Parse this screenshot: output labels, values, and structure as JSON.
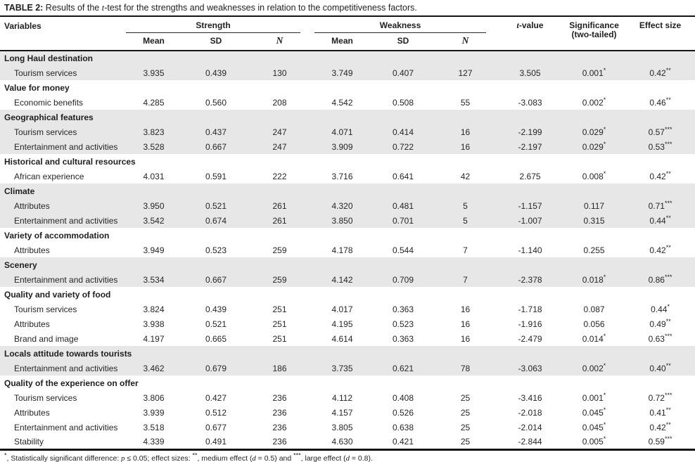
{
  "title": {
    "label": "TABLE 2:",
    "pre": " Results of the ",
    "italic": "t",
    "post": "-test for the strengths and weaknesses in relation to the competitiveness factors."
  },
  "columns": {
    "variables": "Variables",
    "strength": "Strength",
    "weakness": "Weakness",
    "mean": "Mean",
    "sd": "SD",
    "n": "N",
    "tvalue_italic": "t",
    "tvalue_post": "-value",
    "significance_line1": "Significance",
    "significance_line2": "(two-tailed)",
    "effect_size": "Effect size"
  },
  "sections": [
    {
      "name": "Long Haul destination",
      "shaded": true,
      "rows": [
        {
          "label": "Tourism services",
          "values": [
            "3.935",
            "0.439",
            "130",
            "3.749",
            "0.407",
            "127",
            "3.505",
            "0.001*",
            "0.42**"
          ]
        }
      ]
    },
    {
      "name": "Value for money",
      "shaded": false,
      "rows": [
        {
          "label": "Economic benefits",
          "values": [
            "4.285",
            "0.560",
            "208",
            "4.542",
            "0.508",
            "55",
            "-3.083",
            "0.002*",
            "0.46**"
          ]
        }
      ]
    },
    {
      "name": "Geographical features",
      "shaded": true,
      "rows": [
        {
          "label": "Tourism services",
          "values": [
            "3.823",
            "0.437",
            "247",
            "4.071",
            "0.414",
            "16",
            "-2.199",
            "0.029*",
            "0.57***"
          ]
        },
        {
          "label": "Entertainment and activities",
          "values": [
            "3.528",
            "0.667",
            "247",
            "3.909",
            "0.722",
            "16",
            "-2.197",
            "0.029*",
            "0.53***"
          ]
        }
      ]
    },
    {
      "name": "Historical and cultural resources",
      "shaded": false,
      "rows": [
        {
          "label": "African experience",
          "values": [
            "4.031",
            "0.591",
            "222",
            "3.716",
            "0.641",
            "42",
            "2.675",
            "0.008*",
            "0.42**"
          ]
        }
      ]
    },
    {
      "name": "Climate",
      "shaded": true,
      "rows": [
        {
          "label": "Attributes",
          "values": [
            "3.950",
            "0.521",
            "261",
            "4.320",
            "0.481",
            "5",
            "-1.157",
            "0.117",
            "0.71***"
          ]
        },
        {
          "label": "Entertainment and activities",
          "values": [
            "3.542",
            "0.674",
            "261",
            "3.850",
            "0.701",
            "5",
            "-1.007",
            "0.315",
            "0.44**"
          ]
        }
      ]
    },
    {
      "name": "Variety of accommodation",
      "shaded": false,
      "rows": [
        {
          "label": "Attributes",
          "values": [
            "3.949",
            "0.523",
            "259",
            "4.178",
            "0.544",
            "7",
            "-1.140",
            "0.255",
            "0.42**"
          ]
        }
      ]
    },
    {
      "name": "Scenery",
      "shaded": true,
      "rows": [
        {
          "label": "Entertainment and activities",
          "values": [
            "3.534",
            "0.667",
            "259",
            "4.142",
            "0.709",
            "7",
            "-2.378",
            "0.018*",
            "0.86***"
          ]
        }
      ]
    },
    {
      "name": "Quality and variety of food",
      "shaded": false,
      "rows": [
        {
          "label": "Tourism services",
          "values": [
            "3.824",
            "0.439",
            "251",
            "4.017",
            "0.363",
            "16",
            "-1.718",
            "0.087",
            "0.44*"
          ]
        },
        {
          "label": "Attributes",
          "values": [
            "3.938",
            "0.521",
            "251",
            "4.195",
            "0.523",
            "16",
            "-1.916",
            "0.056",
            "0.49**"
          ]
        },
        {
          "label": "Brand and image",
          "values": [
            "4.197",
            "0.665",
            "251",
            "4.614",
            "0.363",
            "16",
            "-2.479",
            "0.014*",
            "0.63***"
          ]
        }
      ]
    },
    {
      "name": "Locals attitude towards tourists",
      "shaded": true,
      "rows": [
        {
          "label": "Entertainment and activities",
          "values": [
            "3.462",
            "0.679",
            "186",
            "3.735",
            "0.621",
            "78",
            "-3.063",
            "0.002*",
            "0.40**"
          ]
        }
      ]
    },
    {
      "name": "Quality of the experience on offer",
      "shaded": false,
      "rows": [
        {
          "label": "Tourism services",
          "values": [
            "3.806",
            "0.427",
            "236",
            "4.112",
            "0.408",
            "25",
            "-3.416",
            "0.001*",
            "0.72***"
          ]
        },
        {
          "label": "Attributes",
          "values": [
            "3.939",
            "0.512",
            "236",
            "4.157",
            "0.526",
            "25",
            "-2.018",
            "0.045*",
            "0.41**"
          ]
        },
        {
          "label": "Entertainment and activities",
          "values": [
            "3.518",
            "0.677",
            "236",
            "3.805",
            "0.638",
            "25",
            "-2.014",
            "0.045*",
            "0.42**"
          ]
        },
        {
          "label": "Stability",
          "values": [
            "4.339",
            "0.491",
            "236",
            "4.630",
            "0.421",
            "25",
            "-2.844",
            "0.005*",
            "0.59***"
          ]
        }
      ]
    }
  ],
  "footnote_segments": [
    {
      "text": "*",
      "sup": true
    },
    {
      "text": ", Statistically significant difference: "
    },
    {
      "text": "p",
      "italic": true
    },
    {
      "text": " ≤ 0.05; effect sizes: "
    },
    {
      "text": "**",
      "sup": true
    },
    {
      "text": ", medium effect ("
    },
    {
      "text": "d",
      "italic": true
    },
    {
      "text": " = 0.5) and "
    },
    {
      "text": "***",
      "sup": true
    },
    {
      "text": ", large effect ("
    },
    {
      "text": "d",
      "italic": true
    },
    {
      "text": " = 0.8)."
    }
  ],
  "colors": {
    "shaded_row": "#e7e7e7",
    "text": "#262626",
    "rule": "#141414"
  }
}
